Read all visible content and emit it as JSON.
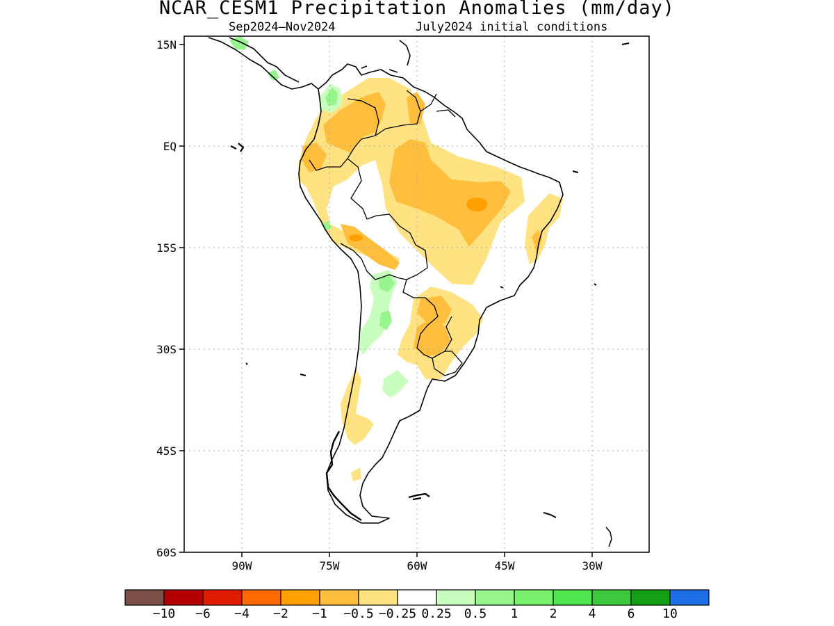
{
  "title": "NCAR_CESM1 Precipitation Anomalies (mm/day)",
  "subtitle_left": "Sep2024–Nov2024",
  "subtitle_right": "July2024 initial conditions",
  "chart_data": {
    "type": "heatmap",
    "map_region": "South America",
    "lon_range": [
      -103,
      -20
    ],
    "lat_range": [
      -60,
      15
    ],
    "lat_ticks": [
      "15N",
      "EQ",
      "15S",
      "30S",
      "45S",
      "60S"
    ],
    "lon_ticks": [
      "90W",
      "75W",
      "60W",
      "45W",
      "30W"
    ],
    "grid": true,
    "colorbar": {
      "labels": [
        "-10",
        "-6",
        "-4",
        "-2",
        "-1",
        "-0.5",
        "-0.25",
        "0.25",
        "0.5",
        "1",
        "2",
        "4",
        "6",
        "10"
      ],
      "colors": [
        "#7a5048",
        "#b40000",
        "#e01c00",
        "#ff6a00",
        "#ffa000",
        "#ffbe3c",
        "#ffe282",
        "#ffffff",
        "#c8ffbe",
        "#96f58c",
        "#78f06e",
        "#50e650",
        "#3cc83c",
        "#14a014",
        "#1e6ee6"
      ]
    },
    "anomaly_regions": [
      {
        "area": "northern South America / Venezuela-Colombia",
        "range": "-1 to -0.25"
      },
      {
        "area": "central Brazil",
        "range": "-1 to -0.25"
      },
      {
        "area": "Peru-Bolivia Andes",
        "range": "-1 to -0.25"
      },
      {
        "area": "Paraguay-Uruguay-southern Brazil",
        "range": "-1 to -0.25"
      },
      {
        "area": "western Colombia",
        "range": "0.25 to 1"
      },
      {
        "area": "northwest Argentina",
        "range": "0.25 to 1"
      }
    ]
  }
}
